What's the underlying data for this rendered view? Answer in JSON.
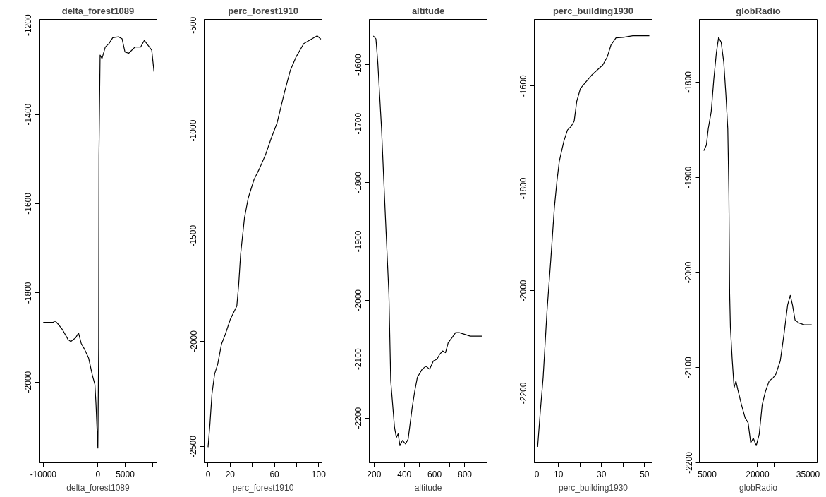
{
  "chart_data": [
    {
      "type": "line",
      "title": "delta_forest1089",
      "xlabel": "delta_forest1089",
      "color": "#000000",
      "grid": false,
      "x": [
        -10000,
        -8160,
        -7820,
        -7140,
        -6460,
        -5440,
        -4960,
        -4080,
        -3540,
        -3060,
        -2380,
        -1700,
        -1020,
        -540,
        -340,
        -140,
        0,
        140,
        200,
        410,
        750,
        1360,
        2040,
        2720,
        3740,
        4420,
        4960,
        5640,
        6800,
        7820,
        8500,
        9180,
        9860,
        10270
      ],
      "values": [
        -1866,
        -1866,
        -1863,
        -1872,
        -1883,
        -1905,
        -1909,
        -1901,
        -1890,
        -1913,
        -1928,
        -1946,
        -1984,
        -2006,
        -2051,
        -2110,
        -2148,
        -1924,
        -1491,
        -1267,
        -1275,
        -1249,
        -1241,
        -1228,
        -1226,
        -1230,
        -1260,
        -1263,
        -1249,
        -1249,
        -1234,
        -1245,
        -1256,
        -1304
      ],
      "xlim": [
        -10750,
        10810
      ],
      "ylim": [
        -2181,
        -1187
      ],
      "xticks": [
        -10000,
        {
          "value": -5000,
          "label": null
        },
        0,
        5000,
        {
          "value": 10000,
          "label": null
        }
      ],
      "yticks": [
        -2000,
        -1800,
        -1600,
        -1400,
        -1200
      ]
    },
    {
      "type": "line",
      "title": "perc_forest1910",
      "xlabel": "perc_forest1910",
      "color": "#000000",
      "grid": false,
      "x": [
        0,
        1.7,
        3.5,
        5.9,
        8.7,
        12.1,
        15.6,
        20.1,
        26,
        27.7,
        29.4,
        32.9,
        36.3,
        41.5,
        46.7,
        51.9,
        57.1,
        62.3,
        69.2,
        74.4,
        79.6,
        86.5,
        91.7,
        98.6,
        102
      ],
      "values": [
        -2503,
        -2393,
        -2251,
        -2156,
        -2109,
        -2014,
        -1967,
        -1896,
        -1833,
        -1730,
        -1588,
        -1415,
        -1320,
        -1233,
        -1178,
        -1115,
        -1036,
        -965,
        -815,
        -713,
        -650,
        -587,
        -571,
        -550,
        -566
      ],
      "xlim": [
        -3.5,
        103
      ],
      "ylim": [
        -2577,
        -472
      ],
      "xticks": [
        0,
        20,
        {
          "value": 40,
          "label": null
        },
        60,
        {
          "value": 80,
          "label": null
        },
        100
      ],
      "yticks": [
        -2500,
        -2000,
        -1500,
        -1000,
        -500
      ]
    },
    {
      "type": "line",
      "title": "altitude",
      "xlabel": "altitude",
      "color": "#000000",
      "grid": false,
      "x": [
        195,
        212,
        224,
        249,
        273,
        298,
        310,
        335,
        347,
        359,
        371,
        388,
        408,
        425,
        452,
        469,
        486,
        518,
        543,
        567,
        592,
        616,
        633,
        653,
        672,
        690,
        714,
        739,
        763,
        800,
        836,
        915
      ],
      "values": [
        -1551,
        -1556,
        -1595,
        -1708,
        -1849,
        -1990,
        -2137,
        -2216,
        -2233,
        -2227,
        -2247,
        -2238,
        -2244,
        -2236,
        -2182,
        -2154,
        -2131,
        -2117,
        -2112,
        -2117,
        -2103,
        -2100,
        -2092,
        -2086,
        -2089,
        -2072,
        -2064,
        -2055,
        -2055,
        -2058,
        -2061,
        -2061
      ],
      "xlim": [
        168,
        947
      ],
      "ylim": [
        -2276,
        -1523
      ],
      "xticks": [
        200,
        {
          "value": 300,
          "label": null
        },
        400,
        {
          "value": 500,
          "label": null
        },
        600,
        {
          "value": 700,
          "label": null
        },
        800,
        {
          "value": 900,
          "label": null
        }
      ],
      "yticks": [
        -2200,
        -2100,
        -2000,
        -1900,
        -1800,
        -1700,
        -1600
      ]
    },
    {
      "type": "line",
      "title": "perc_building1930",
      "xlabel": "perc_building1930",
      "color": "#000000",
      "grid": false,
      "x": [
        0.35,
        1.6,
        2.9,
        4.7,
        6.4,
        8.1,
        9.3,
        10.4,
        12.5,
        14.2,
        15.9,
        17.3,
        18.5,
        20.2,
        22.8,
        25.4,
        28,
        30.6,
        32.7,
        34.4,
        36.7,
        40.1,
        44.5,
        52.2
      ],
      "values": [
        -2305,
        -2234,
        -2169,
        -2039,
        -1942,
        -1838,
        -1786,
        -1747,
        -1708,
        -1686,
        -1679,
        -1669,
        -1630,
        -1605,
        -1592,
        -1579,
        -1569,
        -1559,
        -1543,
        -1520,
        -1506,
        -1505,
        -1502,
        -1502
      ],
      "xlim": [
        -1.2,
        53.5
      ],
      "ylim": [
        -2336,
        -1470
      ],
      "xticks": [
        0,
        10,
        {
          "value": 20,
          "label": null
        },
        30,
        {
          "value": 40,
          "label": null
        },
        50
      ],
      "yticks": [
        -2200,
        -2000,
        -1800,
        -1600
      ]
    },
    {
      "type": "line",
      "title": "globRadio",
      "xlabel": "globRadio",
      "color": "#000000",
      "grid": false,
      "x": [
        4010,
        4780,
        5330,
        6210,
        6980,
        7750,
        8410,
        9180,
        9950,
        10600,
        11150,
        11480,
        11700,
        11920,
        12470,
        13020,
        13570,
        14120,
        15220,
        16320,
        17200,
        17970,
        18740,
        19620,
        20500,
        21380,
        22360,
        23460,
        24560,
        25440,
        26760,
        27860,
        28960,
        29730,
        30390,
        31160,
        32260,
        33910,
        36110
      ],
      "values": [
        -1872,
        -1866,
        -1849,
        -1831,
        -1797,
        -1769,
        -1753,
        -1758,
        -1779,
        -1814,
        -1849,
        -1918,
        -2022,
        -2057,
        -2092,
        -2121,
        -2114,
        -2123,
        -2139,
        -2153,
        -2158,
        -2179,
        -2174,
        -2182,
        -2170,
        -2139,
        -2125,
        -2114,
        -2111,
        -2107,
        -2093,
        -2065,
        -2034,
        -2024,
        -2034,
        -2050,
        -2053,
        -2055,
        -2055
      ],
      "xlim": [
        2690,
        37750
      ],
      "ylim": [
        -2200,
        -1734
      ],
      "xticks": [
        5000,
        {
          "value": 10000,
          "label": null
        },
        {
          "value": 15000,
          "label": null
        },
        20000,
        {
          "value": 25000,
          "label": null
        },
        {
          "value": 30000,
          "label": null
        },
        35000
      ],
      "yticks": [
        -2200,
        -2100,
        -2000,
        -1900,
        -1800
      ]
    }
  ]
}
